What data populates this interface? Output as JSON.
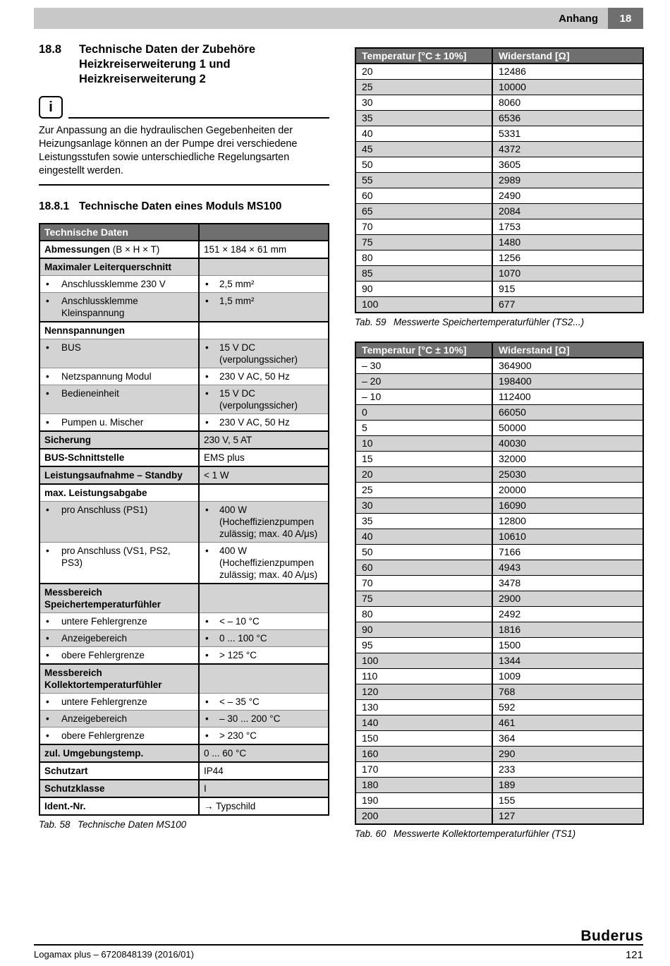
{
  "glyphs": {
    "bullet": "•",
    "info": "i"
  },
  "header": {
    "section_label": "Anhang",
    "chapter_number": "18"
  },
  "left": {
    "section_number": "18.8",
    "section_title": "Technische Daten der Zubehöre Heizkreiserweiterung 1 und Heizkreiserweiterung 2",
    "notice_text": "Zur Anpassung an die hydraulischen Gegebenheiten der Heizungsanlage können an der Pumpe drei verschiedene Leistungsstufen sowie unterschiedliche Regelungsarten eingestellt werden.",
    "subsection_number": "18.8.1",
    "subsection_title": "Technische Daten eines Moduls MS100",
    "table": {
      "header_label": "Technische Daten",
      "rows": [
        {
          "kind": "data",
          "label": "Abmessungen",
          "label_suffix": " (B × H × T)",
          "value": "151 × 184 × 61 mm"
        },
        {
          "kind": "group",
          "label": "Maximaler Leiterquerschnitt"
        },
        {
          "kind": "bullet",
          "label": "Anschlussklemme 230 V",
          "value": "2,5 mm²"
        },
        {
          "kind": "bullet",
          "label": "Anschlussklemme Kleinspannung",
          "value": "1,5 mm²"
        },
        {
          "kind": "group",
          "label": "Nennspannungen"
        },
        {
          "kind": "bullet",
          "label": "BUS",
          "value": "15 V DC (verpolungssicher)"
        },
        {
          "kind": "bullet",
          "label": "Netzspannung Modul",
          "value": "230 V AC, 50 Hz"
        },
        {
          "kind": "bullet",
          "label": "Bedieneinheit",
          "value": "15 V DC (verpolungssicher)"
        },
        {
          "kind": "bullet",
          "label": "Pumpen u. Mischer",
          "value": "230 V AC, 50 Hz"
        },
        {
          "kind": "data",
          "label": "Sicherung",
          "value": "230 V, 5 AT"
        },
        {
          "kind": "data",
          "label": "BUS-Schnittstelle",
          "value": "EMS plus"
        },
        {
          "kind": "data",
          "label": "Leistungsaufnahme – Standby",
          "value": "< 1 W"
        },
        {
          "kind": "group",
          "label": "max. Leistungsabgabe"
        },
        {
          "kind": "bullet",
          "label": "pro Anschluss (PS1)",
          "value": "400 W (Hocheffizienzpumpen zulässig; max. 40 A/μs)"
        },
        {
          "kind": "bullet",
          "label": "pro Anschluss (VS1, PS2, PS3)",
          "value": "400 W (Hocheffizienzpumpen zulässig; max. 40 A/μs)"
        },
        {
          "kind": "group",
          "label": "Messbereich Speichertemperaturfühler"
        },
        {
          "kind": "bullet",
          "label": "untere Fehlergrenze",
          "value": "< – 10 °C"
        },
        {
          "kind": "bullet",
          "label": "Anzeigebereich",
          "value": "0 ... 100 °C"
        },
        {
          "kind": "bullet",
          "label": "obere Fehlergrenze",
          "value": "> 125 °C"
        },
        {
          "kind": "group",
          "label": "Messbereich Kollektortemperaturfühler"
        },
        {
          "kind": "bullet",
          "label": "untere Fehlergrenze",
          "value": "< – 35 °C"
        },
        {
          "kind": "bullet",
          "label": "Anzeigebereich",
          "value": "– 30 ... 200 °C"
        },
        {
          "kind": "bullet",
          "label": "obere Fehlergrenze",
          "value": "> 230 °C"
        },
        {
          "kind": "data",
          "label": "zul. Umgebungstemp.",
          "value": "0 ... 60 °C"
        },
        {
          "kind": "data",
          "label": "Schutzart",
          "value": "IP44"
        },
        {
          "kind": "data",
          "label": "Schutzklasse",
          "value": "I"
        },
        {
          "kind": "data",
          "label": "Ident.-Nr.",
          "value": "→ Typschild"
        }
      ],
      "caption_label": "Tab. 58",
      "caption_text": "Technische Daten MS100"
    }
  },
  "right": {
    "t59": {
      "headers": [
        "Temperatur [°C ± 10%]",
        "Widerstand [Ω]"
      ],
      "rows": [
        [
          "20",
          "12486"
        ],
        [
          "25",
          "10000"
        ],
        [
          "30",
          "8060"
        ],
        [
          "35",
          "6536"
        ],
        [
          "40",
          "5331"
        ],
        [
          "45",
          "4372"
        ],
        [
          "50",
          "3605"
        ],
        [
          "55",
          "2989"
        ],
        [
          "60",
          "2490"
        ],
        [
          "65",
          "2084"
        ],
        [
          "70",
          "1753"
        ],
        [
          "75",
          "1480"
        ],
        [
          "80",
          "1256"
        ],
        [
          "85",
          "1070"
        ],
        [
          "90",
          "915"
        ],
        [
          "100",
          "677"
        ]
      ],
      "caption_label": "Tab. 59",
      "caption_text": "Messwerte Speichertemperaturfühler (TS2...)"
    },
    "t60": {
      "headers": [
        "Temperatur [°C ± 10%]",
        "Widerstand [Ω]"
      ],
      "rows": [
        [
          "– 30",
          "364900"
        ],
        [
          "– 20",
          "198400"
        ],
        [
          "– 10",
          "112400"
        ],
        [
          "0",
          "66050"
        ],
        [
          "5",
          "50000"
        ],
        [
          "10",
          "40030"
        ],
        [
          "15",
          "32000"
        ],
        [
          "20",
          "25030"
        ],
        [
          "25",
          "20000"
        ],
        [
          "30",
          "16090"
        ],
        [
          "35",
          "12800"
        ],
        [
          "40",
          "10610"
        ],
        [
          "50",
          "7166"
        ],
        [
          "60",
          "4943"
        ],
        [
          "70",
          "3478"
        ],
        [
          "75",
          "2900"
        ],
        [
          "80",
          "2492"
        ],
        [
          "90",
          "1816"
        ],
        [
          "95",
          "1500"
        ],
        [
          "100",
          "1344"
        ],
        [
          "110",
          "1009"
        ],
        [
          "120",
          "768"
        ],
        [
          "130",
          "592"
        ],
        [
          "140",
          "461"
        ],
        [
          "150",
          "364"
        ],
        [
          "160",
          "290"
        ],
        [
          "170",
          "233"
        ],
        [
          "180",
          "189"
        ],
        [
          "190",
          "155"
        ],
        [
          "200",
          "127"
        ]
      ],
      "caption_label": "Tab. 60",
      "caption_text": "Messwerte Kollektortemperaturfühler (TS1)"
    }
  },
  "footer": {
    "brand": "Buderus",
    "doc_ref": "Logamax plus – 6720848139 (2016/01)",
    "page_number": "121"
  }
}
